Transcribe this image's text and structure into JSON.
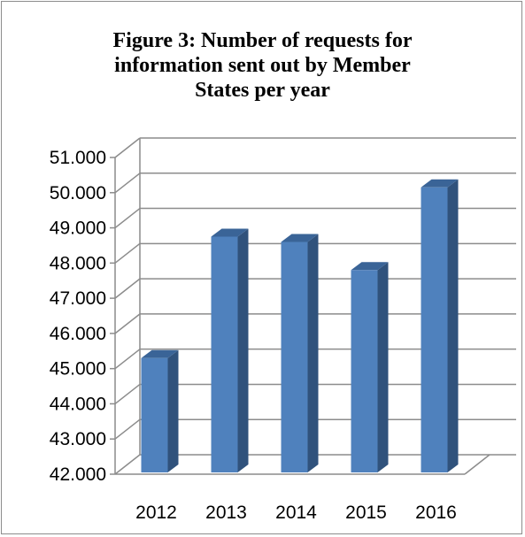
{
  "chart_data": {
    "type": "bar",
    "title_lines": [
      "Figure 3: Number of requests for",
      "information sent out by Member",
      "States per year"
    ],
    "categories": [
      "2012",
      "2013",
      "2014",
      "2015",
      "2016"
    ],
    "values": [
      45300,
      48750,
      48600,
      47800,
      50150
    ],
    "ylim": [
      42000,
      51000
    ],
    "yticks": [
      "42.000",
      "43.000",
      "44.000",
      "45.000",
      "46.000",
      "47.000",
      "48.000",
      "49.000",
      "50.000",
      "51.000"
    ],
    "grid": true,
    "three_d": true,
    "colors": {
      "bar_front": "#4f81bd",
      "bar_side": "#30527c",
      "bar_top": "#3a6497",
      "grid": "#8c8c8c"
    }
  }
}
